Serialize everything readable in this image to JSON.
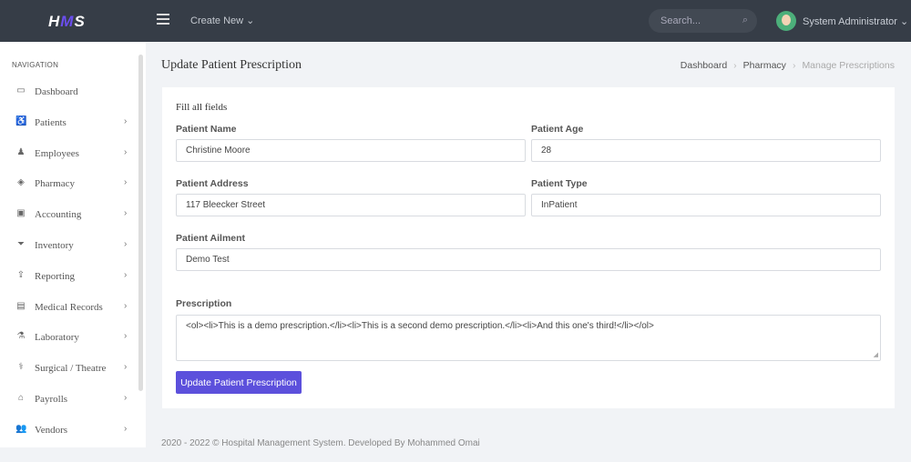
{
  "header": {
    "logo": "HMS",
    "create_new": "Create New",
    "search_placeholder": "Search...",
    "user": "System Administrator"
  },
  "sidebar": {
    "heading": "NAVIGATION",
    "items": [
      {
        "label": "Dashboard",
        "icon": "monitor-icon",
        "chevron": false
      },
      {
        "label": "Patients",
        "icon": "wheelchair-icon",
        "chevron": true
      },
      {
        "label": "Employees",
        "icon": "user-icon",
        "chevron": true
      },
      {
        "label": "Pharmacy",
        "icon": "pill-icon",
        "chevron": true
      },
      {
        "label": "Accounting",
        "icon": "money-icon",
        "chevron": true
      },
      {
        "label": "Inventory",
        "icon": "filter-icon",
        "chevron": true
      },
      {
        "label": "Reporting",
        "icon": "upload-icon",
        "chevron": true
      },
      {
        "label": "Medical Records",
        "icon": "file-icon",
        "chevron": true
      },
      {
        "label": "Laboratory",
        "icon": "flask-icon",
        "chevron": true
      },
      {
        "label": "Surgical / Theatre",
        "icon": "surgery-icon",
        "chevron": true
      },
      {
        "label": "Payrolls",
        "icon": "briefcase-icon",
        "chevron": true
      },
      {
        "label": "Vendors",
        "icon": "users-icon",
        "chevron": true
      }
    ]
  },
  "page": {
    "title": "Update Patient Prescription",
    "breadcrumb": [
      "Dashboard",
      "Pharmacy",
      "Manage Prescriptions"
    ]
  },
  "form": {
    "instruction": "Fill all fields",
    "name_label": "Patient Name",
    "name": "Christine Moore",
    "age_label": "Patient Age",
    "age": "28",
    "address_label": "Patient Address",
    "address": "117 Bleecker Street",
    "type_label": "Patient Type",
    "type": "InPatient",
    "ailment_label": "Patient Ailment",
    "ailment": "Demo Test",
    "prescription_label": "Prescription",
    "prescription": "<ol><li>This is a demo prescription.</li><li>This is a second demo prescription.</li><li>And this one's third!</li></ol>",
    "submit": "Update Patient Prescription"
  },
  "footer": "2020 - 2022 © Hospital Management System. Developed By Mohammed Omai",
  "colors": {
    "topbar": "#363d47",
    "accent": "#5c50dc"
  }
}
